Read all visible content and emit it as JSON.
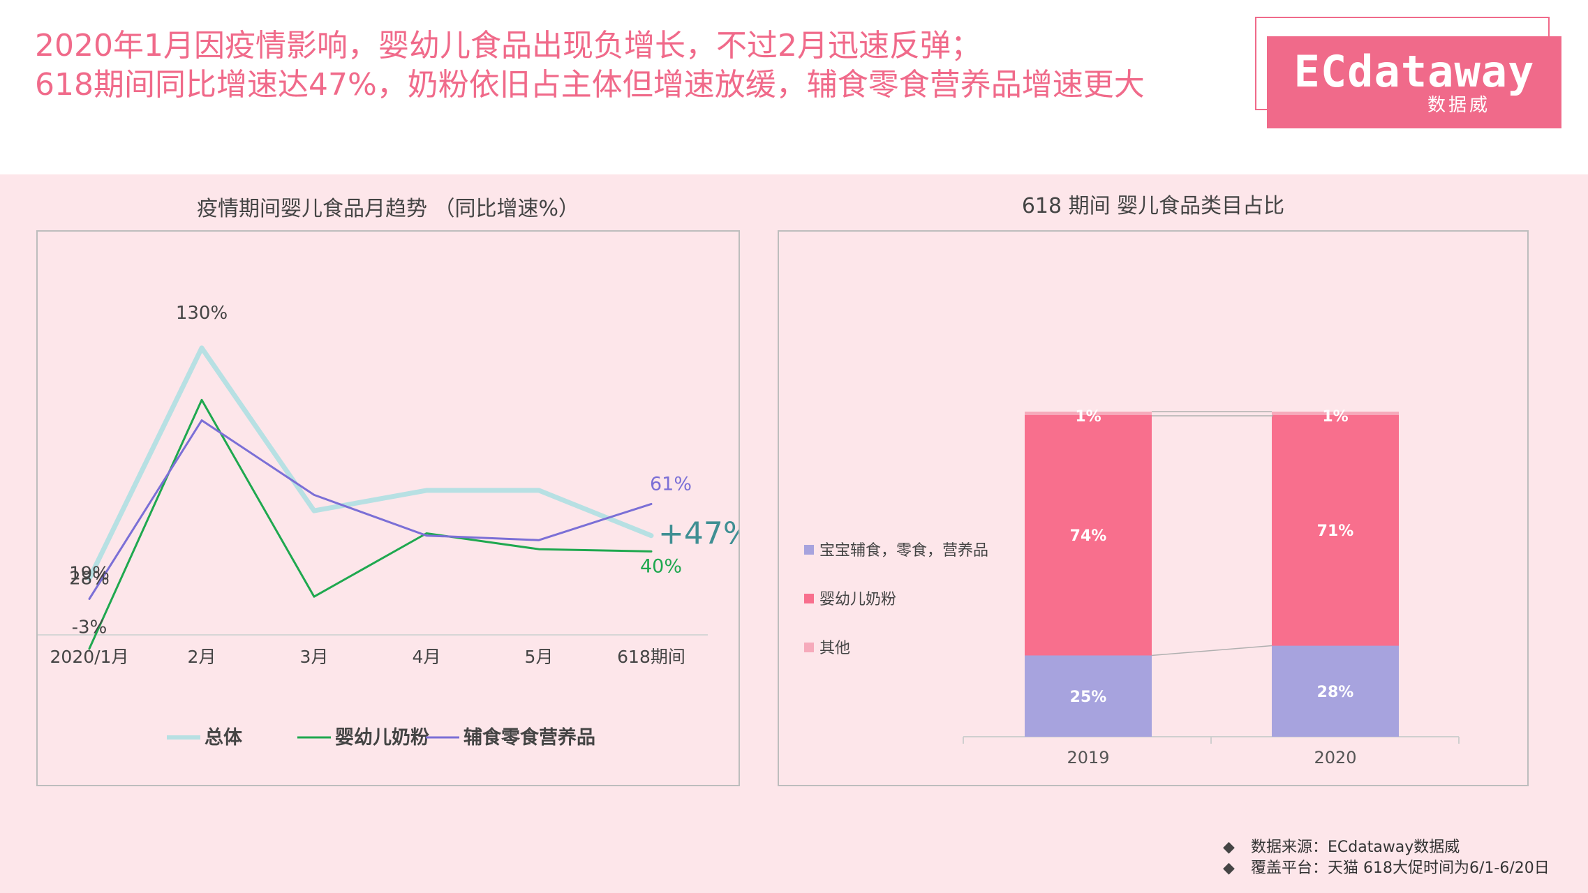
{
  "headline": {
    "line1": "2020年1月因疫情影响，婴幼儿食品出现负增长，不过2月迅速反弹；",
    "line2": "618期间同比增速达47%，奶粉依旧占主体但增速放缓，辅食零食营养品增速更大"
  },
  "logo": {
    "main": "ECdataway",
    "sub": "数据威"
  },
  "left_panel": {
    "title": "疫情期间婴儿食品月趋势 （同比增速%）"
  },
  "right_panel": {
    "title": "618 期间 婴儿食品类目占比"
  },
  "footer": {
    "bullet": "◆",
    "source": "数据来源：ECdataway数据威",
    "platform": "覆盖平台：天猫  618大促时间为6/1-6/20日"
  },
  "colors": {
    "accent": "#f06a8a",
    "total": "#b7e0e3",
    "milk": "#1fa84f",
    "food": "#7b6fd6",
    "bar_food": "#a7a3de",
    "bar_milk": "#f86f8d",
    "bar_other": "#f6aabb",
    "band": "#fde6ea"
  },
  "chart_data": [
    {
      "type": "line",
      "title": "疫情期间婴儿食品月趋势 （同比增速%）",
      "categories": [
        "2020/1月",
        "2月",
        "3月",
        "4月",
        "5月",
        "618期间"
      ],
      "series": [
        {
          "name": "总体",
          "values": [
            28,
            130,
            58,
            67,
            67,
            47
          ]
        },
        {
          "name": "婴幼儿奶粉",
          "values": [
            -3,
            107,
            20,
            48,
            41,
            40
          ]
        },
        {
          "name": "辅食零食营养品",
          "values": [
            19,
            98,
            65,
            47,
            45,
            61
          ]
        }
      ],
      "annotations": [
        {
          "text": "130%",
          "category": "2月",
          "series": "总体"
        },
        {
          "text": "28%",
          "category": "2020/1月",
          "series": "总体"
        },
        {
          "text": "19%",
          "category": "2020/1月",
          "series": "辅食零食营养品"
        },
        {
          "text": "-3%",
          "category": "2020/1月",
          "series": "婴幼儿奶粉"
        },
        {
          "text": "61%",
          "category": "618期间",
          "series": "辅食零食营养品"
        },
        {
          "text": "+47%",
          "category": "618期间",
          "series": "总体"
        },
        {
          "text": "40%",
          "category": "618期间",
          "series": "婴幼儿奶粉"
        }
      ],
      "legend": "bottom",
      "grid": false
    },
    {
      "type": "bar",
      "stacked": true,
      "title": "618 期间 婴儿食品类目占比",
      "categories": [
        "2019",
        "2020"
      ],
      "series": [
        {
          "name": "宝宝辅食，零食，营养品",
          "values": [
            25,
            28
          ],
          "labels": [
            "25%",
            "28%"
          ]
        },
        {
          "name": "婴幼儿奶粉",
          "values": [
            74,
            71
          ],
          "labels": [
            "74%",
            "71%"
          ]
        },
        {
          "name": "其他",
          "values": [
            1,
            1
          ],
          "labels": [
            "1%",
            "1%"
          ]
        }
      ],
      "legend": "left",
      "grid": false
    }
  ]
}
